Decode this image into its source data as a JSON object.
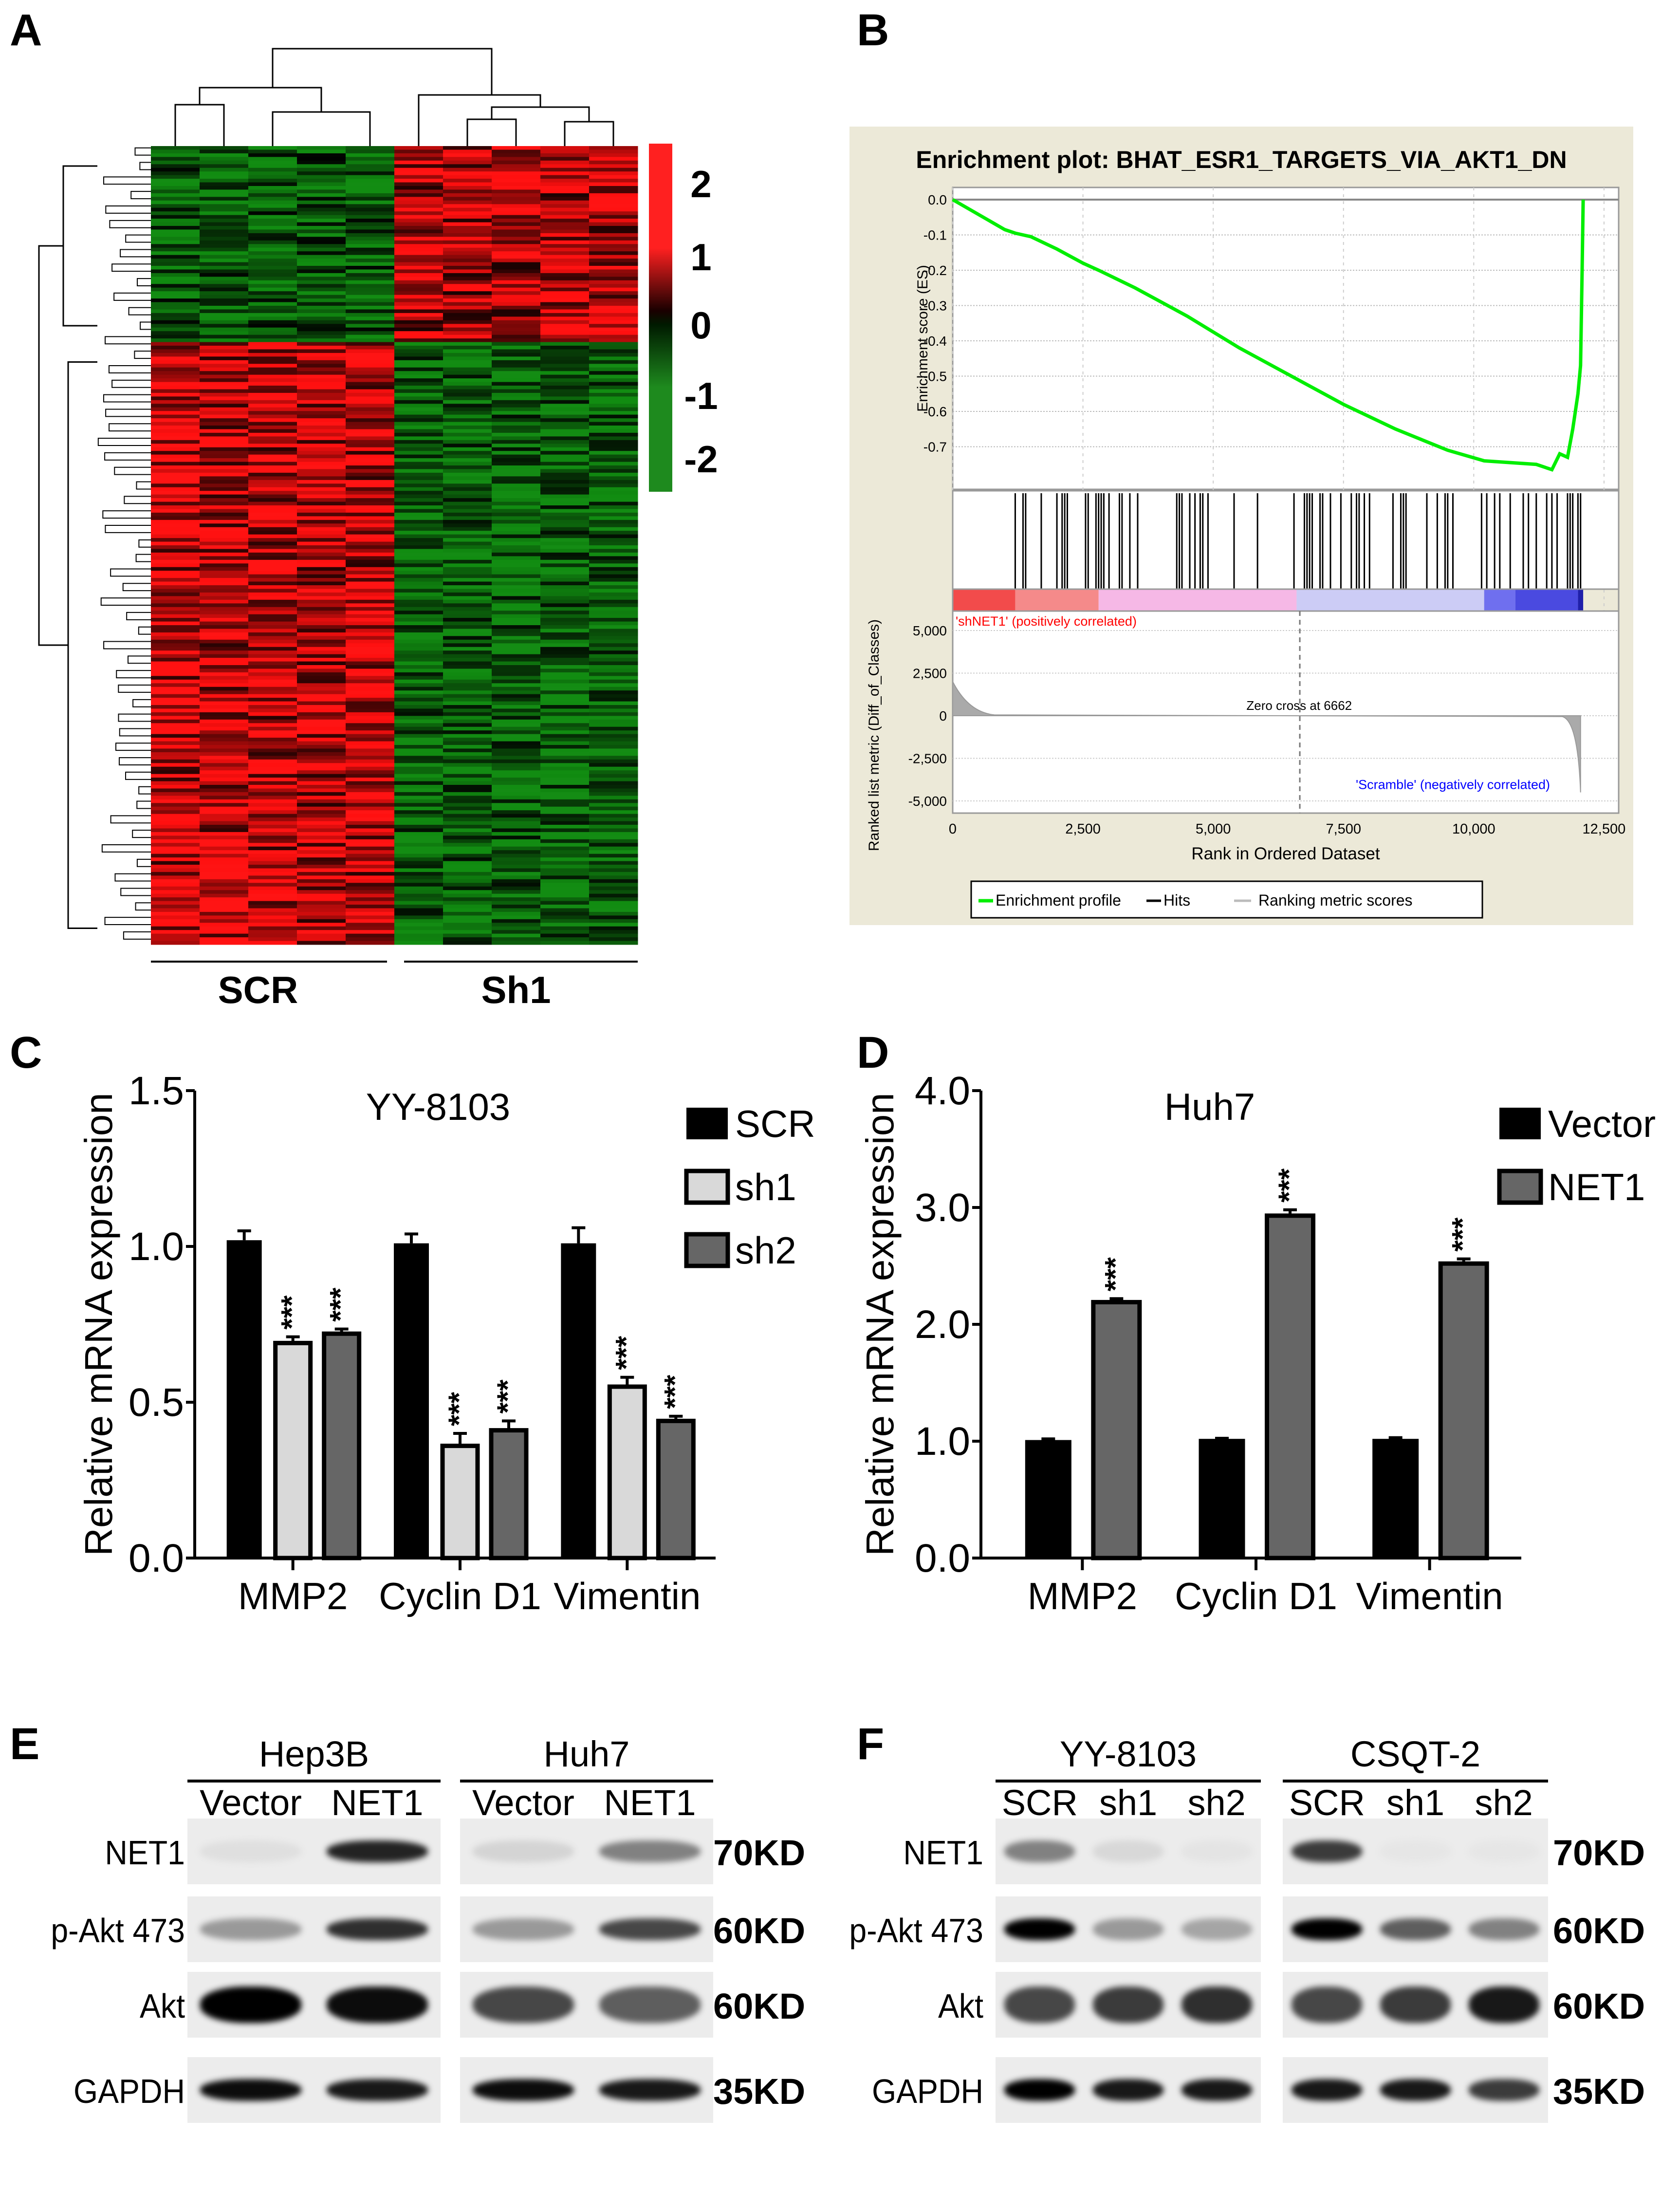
{
  "panels": {
    "A": {
      "letter": "A"
    },
    "B": {
      "letter": "B"
    },
    "C": {
      "letter": "C"
    },
    "D": {
      "letter": "D"
    },
    "E": {
      "letter": "E"
    },
    "F": {
      "letter": "F"
    }
  },
  "chart_data": [
    {
      "id": "A",
      "type": "heatmap",
      "title": "",
      "groups": [
        {
          "label": "SCR",
          "columns": 5
        },
        {
          "label": "Sh1",
          "columns": 5
        }
      ],
      "colorbar": {
        "ticks": [
          "2",
          "1",
          "0",
          "-1",
          "-2"
        ],
        "range": [
          -2.5,
          2.5
        ],
        "colors": {
          "high": "#ff2020",
          "mid": "#000000",
          "low": "#1e8a1e"
        }
      },
      "blocks": [
        {
          "rows": "top ~25%",
          "SCR": "down (green)",
          "Sh1": "up (red)"
        },
        {
          "rows": "bottom ~75%",
          "SCR": "up (red)",
          "Sh1": "down (green)"
        }
      ],
      "dendrogram": {
        "row": true,
        "column": true
      }
    },
    {
      "id": "B",
      "type": "line",
      "title": "Enrichment plot: BHAT_ESR1_TARGETS_VIA_AKT1_DN",
      "es_ylabel": "Enrichment score (ES)",
      "es_yticks": [
        "0.0",
        "-0.1",
        "-0.2",
        "-0.3",
        "-0.4",
        "-0.5",
        "-0.6",
        "-0.7"
      ],
      "es_ylim": [
        -0.78,
        0.02
      ],
      "es_curve": {
        "x": [
          0,
          1000,
          1200,
          1350,
          1500,
          2000,
          2500,
          2800,
          3500,
          4500,
          5500,
          6500,
          7500,
          8500,
          9500,
          10200,
          10700,
          11200,
          11500,
          11650,
          11800,
          11900,
          12000,
          12050,
          12080,
          12100
        ],
        "y": [
          0,
          -0.085,
          -0.095,
          -0.1,
          -0.105,
          -0.14,
          -0.18,
          -0.2,
          -0.25,
          -0.33,
          -0.42,
          -0.5,
          -0.58,
          -0.65,
          -0.71,
          -0.74,
          -0.745,
          -0.75,
          -0.765,
          -0.72,
          -0.73,
          -0.65,
          -0.55,
          -0.47,
          -0.2,
          0
        ]
      },
      "hits": [
        1200,
        1350,
        1400,
        1700,
        2000,
        2100,
        2150,
        2200,
        2550,
        2600,
        2750,
        2800,
        2850,
        2900,
        3000,
        3200,
        3250,
        3400,
        3550,
        4300,
        4350,
        4400,
        4550,
        4650,
        4750,
        4800,
        4900,
        5400,
        5850,
        6550,
        6750,
        6800,
        6850,
        6900,
        7050,
        7100,
        7250,
        7450,
        7650,
        7750,
        7800,
        7900,
        8000,
        8450,
        8600,
        8650,
        8700,
        9100,
        9300,
        9450,
        9500,
        9600,
        10150,
        10250,
        10400,
        10500,
        10700,
        10950,
        11050,
        11200,
        11400,
        11500,
        11600,
        11800,
        11850,
        11900,
        12000,
        12050
      ],
      "ranking_bar": {
        "segments": [
          {
            "to": 1200,
            "color": "#f24b4b"
          },
          {
            "to": 2800,
            "color": "#f58a8a"
          },
          {
            "to": 6600,
            "color": "#f6b8e6"
          },
          {
            "to": 10200,
            "color": "#ccccf6"
          },
          {
            "to": 10800,
            "color": "#6f6fef"
          },
          {
            "to": 12000,
            "color": "#4a4ae0"
          },
          {
            "to": 12100,
            "color": "#1f1faa"
          }
        ]
      },
      "rank_ylabel": "Ranked list metric (Diff_of_Classes)",
      "rank_yticks": [
        "5,000",
        "2,500",
        "0",
        "-2,500",
        "-5,000"
      ],
      "rank_ylim": [
        -5000,
        5000
      ],
      "xlabel": "Rank in Ordered Dataset",
      "xticks": [
        "0",
        "2,500",
        "5,000",
        "7,500",
        "10,000",
        "12,500"
      ],
      "xlim": [
        0,
        12500
      ],
      "annotations": {
        "positive": "'shNET1' (positively correlated)",
        "negative": "'Scramble' (negatively correlated)",
        "zero_cross": "Zero cross at 6662"
      },
      "zero_cross_rank": 6662,
      "legend": {
        "position": "bottom",
        "items": [
          "Enrichment profile",
          "Hits",
          "Ranking metric scores"
        ]
      },
      "colors": {
        "es": "#00ee00",
        "positive": "#ff0000",
        "negative": "#0000ff",
        "background": "#ece9d8"
      }
    },
    {
      "id": "C",
      "type": "bar",
      "title": "YY-8103",
      "ylabel": "Relative mRNA expression",
      "yticks": [
        "0.0",
        "0.5",
        "1.0",
        "1.5"
      ],
      "ylim": [
        0,
        1.5
      ],
      "categories": [
        "MMP2",
        "Cyclin D1",
        "Vimentin"
      ],
      "series": [
        {
          "name": "SCR",
          "values": [
            1.02,
            1.01,
            1.01
          ],
          "errors": [
            0.03,
            0.03,
            0.05
          ],
          "sig": [
            "",
            "",
            ""
          ],
          "color": "#000000"
        },
        {
          "name": "sh1",
          "values": [
            0.69,
            0.36,
            0.55
          ],
          "errors": [
            0.02,
            0.04,
            0.03
          ],
          "sig": [
            "***",
            "***",
            "***"
          ],
          "color": "#d9d9d9"
        },
        {
          "name": "sh2",
          "values": [
            0.72,
            0.41,
            0.44
          ],
          "errors": [
            0.015,
            0.03,
            0.015
          ],
          "sig": [
            "***",
            "***",
            "***"
          ],
          "color": "#666666"
        }
      ],
      "legend": {
        "position": "top-right"
      }
    },
    {
      "id": "D",
      "type": "bar",
      "title": "Huh7",
      "ylabel": "Relative mRNA expression",
      "yticks": [
        "0.0",
        "1.0",
        "2.0",
        "3.0",
        "4.0"
      ],
      "ylim": [
        0,
        4.0
      ],
      "categories": [
        "MMP2",
        "Cyclin D1",
        "Vimentin"
      ],
      "series": [
        {
          "name": "Vector",
          "values": [
            1.01,
            1.02,
            1.02
          ],
          "errors": [
            0.01,
            0.005,
            0.01
          ],
          "sig": [
            "",
            "",
            ""
          ],
          "color": "#000000"
        },
        {
          "name": "NET1",
          "values": [
            2.19,
            2.93,
            2.52
          ],
          "errors": [
            0.03,
            0.05,
            0.04
          ],
          "sig": [
            "***",
            "***",
            "***"
          ],
          "color": "#666666"
        }
      ],
      "legend": {
        "position": "top-right"
      }
    }
  ],
  "western_blots": [
    {
      "id": "E",
      "groups": [
        {
          "label": "Hep3B",
          "lanes": [
            "Vector",
            "NET1"
          ]
        },
        {
          "label": "Huh7",
          "lanes": [
            "Vector",
            "NET1"
          ]
        }
      ],
      "rows": [
        {
          "protein": "NET1",
          "size": "70KD",
          "intensity": [
            [
              0.05,
              0.85
            ],
            [
              0.1,
              0.45
            ]
          ]
        },
        {
          "protein": "p-Akt 473",
          "size": "60KD",
          "intensity": [
            [
              0.35,
              0.8
            ],
            [
              0.35,
              0.7
            ]
          ]
        },
        {
          "protein": "Akt",
          "size": "60KD",
          "intensity": [
            [
              1.0,
              0.95
            ],
            [
              0.7,
              0.6
            ]
          ]
        },
        {
          "protein": "GAPDH",
          "size": "35KD",
          "intensity": [
            [
              0.95,
              0.9
            ],
            [
              0.95,
              0.9
            ]
          ]
        }
      ]
    },
    {
      "id": "F",
      "groups": [
        {
          "label": "YY-8103",
          "lanes": [
            "SCR",
            "sh1",
            "sh2"
          ]
        },
        {
          "label": "CSQT-2",
          "lanes": [
            "SCR",
            "sh1",
            "sh2"
          ]
        }
      ],
      "rows": [
        {
          "protein": "NET1",
          "size": "70KD",
          "intensity": [
            [
              0.45,
              0.08,
              0.03
            ],
            [
              0.75,
              0.02,
              0.02
            ]
          ]
        },
        {
          "protein": "p-Akt 473",
          "size": "60KD",
          "intensity": [
            [
              1.0,
              0.35,
              0.3
            ],
            [
              1.0,
              0.6,
              0.45
            ]
          ]
        },
        {
          "protein": "Akt",
          "size": "60KD",
          "intensity": [
            [
              0.7,
              0.75,
              0.8
            ],
            [
              0.7,
              0.75,
              0.9
            ]
          ]
        },
        {
          "protein": "GAPDH",
          "size": "35KD",
          "intensity": [
            [
              1.0,
              0.9,
              0.9
            ],
            [
              0.9,
              0.9,
              0.75
            ]
          ]
        }
      ]
    }
  ]
}
